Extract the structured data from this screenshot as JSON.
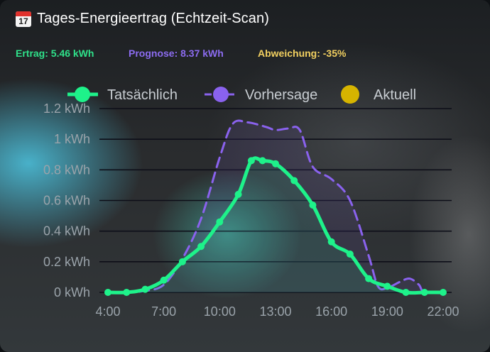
{
  "card": {
    "title": "Tages-Energieertrag (Echtzeit-Scan)",
    "calendar_day": "17",
    "stats": {
      "ertrag": "Ertrag: 5.46 kWh",
      "prognose": "Prognose: 8.37 kWh",
      "abweichung": "Abweichung: -35%"
    }
  },
  "colors": {
    "actual": "#1ef28a",
    "forecast": "#8a62ee",
    "current": "#d6b400",
    "grid": "#0d0e18"
  },
  "chart_data": {
    "type": "line",
    "legend_position": "top",
    "grid": true,
    "x_start_hour": 4,
    "x_end_hour": 22,
    "xlim": [
      4,
      22
    ],
    "ylim": [
      0,
      1.2
    ],
    "x_ticks": [
      {
        "value": 4,
        "label": "4:00"
      },
      {
        "value": 7,
        "label": "7:00"
      },
      {
        "value": 10,
        "label": "10:00"
      },
      {
        "value": 13,
        "label": "13:00"
      },
      {
        "value": 16,
        "label": "16:00"
      },
      {
        "value": 19,
        "label": "19:00"
      },
      {
        "value": 22,
        "label": "22:00"
      }
    ],
    "y_ticks": [
      {
        "value": 0,
        "label": "0 kWh"
      },
      {
        "value": 0.2,
        "label": "0.2 kWh"
      },
      {
        "value": 0.4,
        "label": "0.4 kWh"
      },
      {
        "value": 0.6,
        "label": "0.6 kWh"
      },
      {
        "value": 0.8,
        "label": "0.8 kWh"
      },
      {
        "value": 1.0,
        "label": "1 kWh"
      },
      {
        "value": 1.2,
        "label": "1.2 kWh"
      }
    ],
    "series": [
      {
        "name": "Tatsächlich",
        "style": "solid-with-markers",
        "points": [
          [
            4,
            0
          ],
          [
            5,
            0
          ],
          [
            6,
            0.02
          ],
          [
            7,
            0.08
          ],
          [
            8,
            0.2
          ],
          [
            9,
            0.3
          ],
          [
            10,
            0.46
          ],
          [
            11,
            0.64
          ],
          [
            11.7,
            0.86
          ],
          [
            12.3,
            0.86
          ],
          [
            13,
            0.84
          ],
          [
            14,
            0.73
          ],
          [
            15,
            0.57
          ],
          [
            16,
            0.33
          ],
          [
            17,
            0.25
          ],
          [
            18,
            0.09
          ],
          [
            19,
            0.04
          ],
          [
            20,
            0
          ],
          [
            21,
            0
          ],
          [
            22,
            0
          ]
        ]
      },
      {
        "name": "Vorhersage",
        "style": "dashed",
        "points": [
          [
            4,
            0
          ],
          [
            5,
            0
          ],
          [
            6,
            0.01
          ],
          [
            7,
            0.05
          ],
          [
            8,
            0.22
          ],
          [
            9,
            0.48
          ],
          [
            10,
            0.88
          ],
          [
            10.7,
            1.1
          ],
          [
            11.5,
            1.11
          ],
          [
            12.5,
            1.08
          ],
          [
            13,
            1.06
          ],
          [
            13.7,
            1.07
          ],
          [
            14.3,
            1.06
          ],
          [
            15,
            0.82
          ],
          [
            16,
            0.74
          ],
          [
            17,
            0.6
          ],
          [
            18,
            0.24
          ],
          [
            18.5,
            0.04
          ],
          [
            19,
            0.03
          ],
          [
            19.7,
            0.07
          ],
          [
            20.2,
            0.09
          ],
          [
            20.7,
            0.05
          ],
          [
            21,
            0
          ],
          [
            22,
            0
          ]
        ]
      },
      {
        "name": "Aktuell",
        "style": "marker",
        "points": []
      }
    ]
  }
}
